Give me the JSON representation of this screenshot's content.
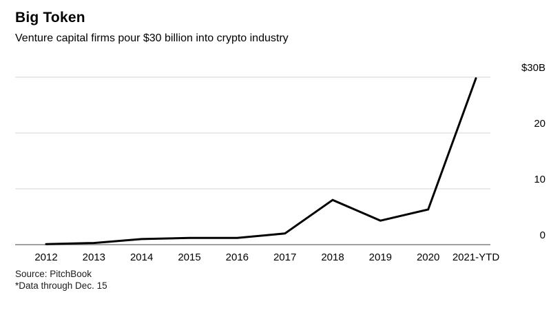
{
  "header": {
    "title": "Big Token",
    "subtitle": "Venture capital firms pour $30 billion into crypto industry"
  },
  "footer": {
    "source": "Source: PitchBook",
    "note": "*Data through Dec. 15"
  },
  "colors": {
    "line": "#000000",
    "grid": "#d6d6d6",
    "zero_line": "#808080",
    "text": "#000000"
  },
  "chart_data": {
    "type": "line",
    "title": "Big Token",
    "subtitle": "Venture capital firms pour $30 billion into crypto industry",
    "categories": [
      "2012",
      "2013",
      "2014",
      "2015",
      "2016",
      "2017",
      "2018",
      "2019",
      "2020",
      "2021-YTD"
    ],
    "values": [
      0.1,
      0.3,
      1.0,
      1.2,
      1.2,
      2.0,
      8.0,
      4.3,
      6.3,
      29.8
    ],
    "xlabel": "",
    "ylabel": "",
    "ylim": [
      0,
      30
    ],
    "yticks": [
      {
        "value": 0,
        "label": "0"
      },
      {
        "value": 10,
        "label": "10"
      },
      {
        "value": 20,
        "label": "20"
      },
      {
        "value": 30,
        "label": "$30B"
      }
    ],
    "grid": true,
    "legend": "none",
    "source": "Source: PitchBook",
    "note": "*Data through Dec. 15"
  }
}
